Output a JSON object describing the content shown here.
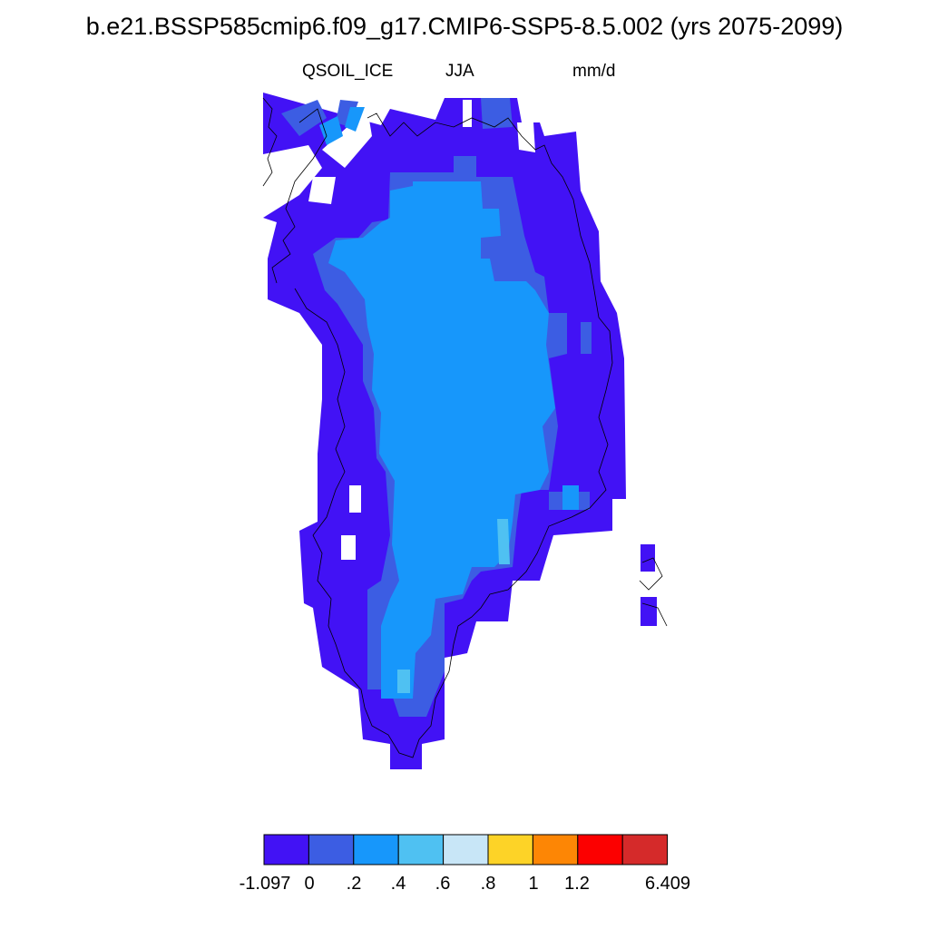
{
  "title": "b.e21.BSSP585cmip6.f09_g17.CMIP6-SSP5-8.5.002 (yrs 2075-2099)",
  "variable": "QSOIL_ICE",
  "season": "JJA",
  "units": "mm/d",
  "colorbar": {
    "colors": [
      "#4212f5",
      "#3c5de3",
      "#1797fb",
      "#4fc1f2",
      "#c8e6f7",
      "#fdd327",
      "#fd8605",
      "#fc0000",
      "#d52a2a"
    ],
    "labels": [
      "-1.097",
      "0",
      ".2",
      ".4",
      ".6",
      ".8",
      "1",
      "1.2",
      "6.409"
    ]
  },
  "map_colors": {
    "low": "#4212f5",
    "mid": "#3c5de3",
    "main": "#1797fb",
    "light": "#4fc1f2",
    "coast": "#000000"
  }
}
